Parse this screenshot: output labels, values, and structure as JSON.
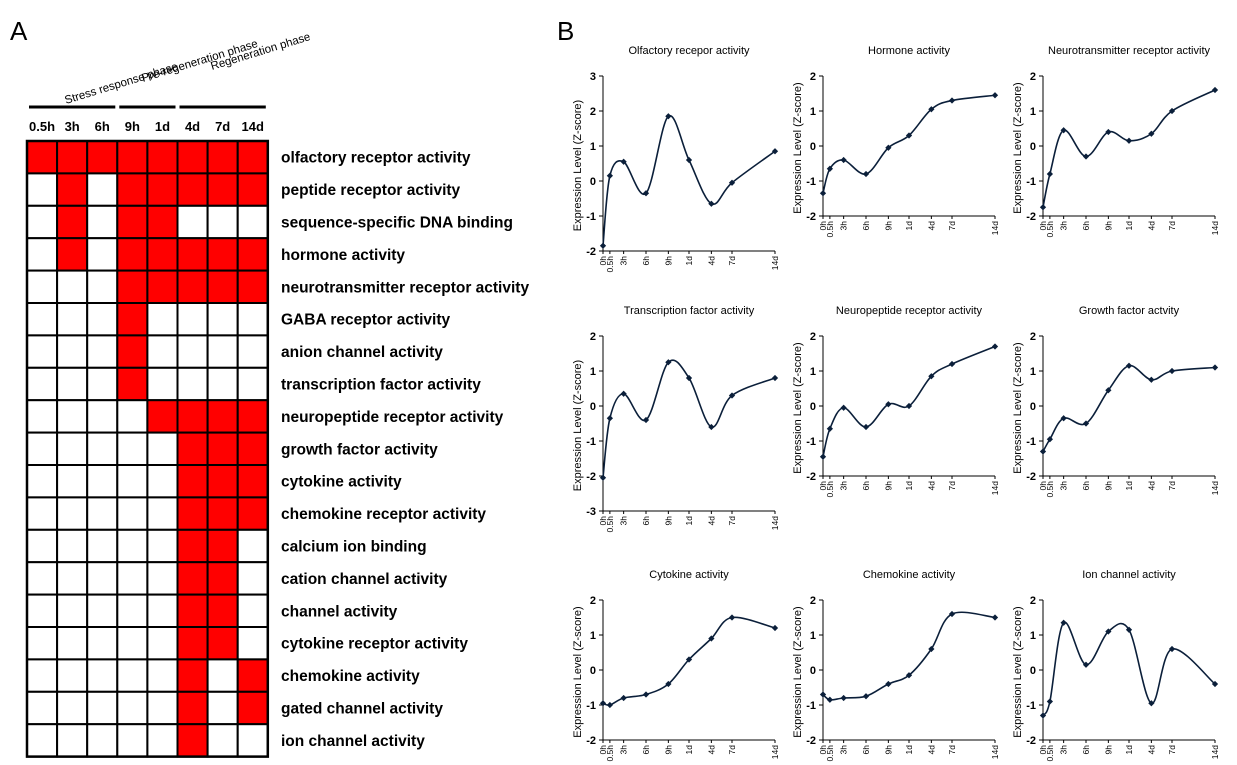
{
  "panel_a_letter": "A",
  "panel_b_letter": "B",
  "chart_data": [
    {
      "type": "heatmap",
      "phases": [
        "Stress response phase",
        "Pre-regeneration phase",
        "Regeneration phase"
      ],
      "columns": [
        "0.5h",
        "3h",
        "6h",
        "9h",
        "1d",
        "4d",
        "7d",
        "14d"
      ],
      "rows": [
        "olfactory receptor activity",
        "peptide receptor activity",
        "sequence-specific DNA binding",
        "hormone activity",
        "neurotransmitter receptor activity",
        "GABA receptor activity",
        "anion channel activity",
        "transcription factor activity",
        "neuropeptide receptor activity",
        "growth factor activity",
        "cytokine activity",
        "chemokine receptor activity",
        "calcium ion binding",
        "cation channel activity",
        "channel activity",
        "cytokine receptor activity",
        "chemokine activity",
        "gated channel activity",
        "ion channel activity"
      ],
      "matrix": [
        [
          1,
          1,
          1,
          1,
          1,
          1,
          1,
          1
        ],
        [
          0,
          1,
          0,
          1,
          1,
          1,
          1,
          1
        ],
        [
          0,
          1,
          0,
          1,
          1,
          0,
          0,
          0
        ],
        [
          0,
          1,
          0,
          1,
          1,
          1,
          1,
          1
        ],
        [
          0,
          0,
          0,
          1,
          1,
          1,
          1,
          1
        ],
        [
          0,
          0,
          0,
          1,
          0,
          0,
          0,
          0
        ],
        [
          0,
          0,
          0,
          1,
          0,
          0,
          0,
          0
        ],
        [
          0,
          0,
          0,
          1,
          0,
          0,
          0,
          0
        ],
        [
          0,
          0,
          0,
          0,
          1,
          1,
          1,
          1
        ],
        [
          0,
          0,
          0,
          0,
          0,
          1,
          1,
          1
        ],
        [
          0,
          0,
          0,
          0,
          0,
          1,
          1,
          1
        ],
        [
          0,
          0,
          0,
          0,
          0,
          1,
          1,
          1
        ],
        [
          0,
          0,
          0,
          0,
          0,
          1,
          1,
          0
        ],
        [
          0,
          0,
          0,
          0,
          0,
          1,
          1,
          0
        ],
        [
          0,
          0,
          0,
          0,
          0,
          1,
          1,
          0
        ],
        [
          0,
          0,
          0,
          0,
          0,
          1,
          1,
          0
        ],
        [
          0,
          0,
          0,
          0,
          0,
          1,
          0,
          1
        ],
        [
          0,
          0,
          0,
          0,
          0,
          1,
          0,
          1
        ],
        [
          0,
          0,
          0,
          0,
          0,
          1,
          0,
          0
        ]
      ],
      "colors": {
        "on": "#ff0000",
        "off": "#ffffff",
        "grid": "#000000"
      }
    },
    {
      "type": "line",
      "title": "Olfactory recepor activity",
      "ylabel": "Expression Level (Z-score)",
      "ylim": [
        -2,
        3
      ],
      "x": [
        "0h",
        "0.5h",
        "3h",
        "6h",
        "9h",
        "1d",
        "4d",
        "7d",
        "14d"
      ],
      "values": [
        -1.85,
        0.15,
        0.55,
        -0.35,
        1.85,
        0.6,
        -0.65,
        -0.05,
        0.85
      ]
    },
    {
      "type": "line",
      "title": "Hormone activity",
      "ylabel": "Expression Level (Z-score)",
      "ylim": [
        -2,
        2
      ],
      "x": [
        "0h",
        "0.5h",
        "3h",
        "6h",
        "9h",
        "1d",
        "4d",
        "7d",
        "14d"
      ],
      "values": [
        -1.35,
        -0.65,
        -0.4,
        -0.8,
        -0.05,
        0.3,
        1.05,
        1.3,
        1.45
      ]
    },
    {
      "type": "line",
      "title": "Neurotransmitter receptor activity",
      "ylabel": "Expression Level (Z-score)",
      "ylim": [
        -2,
        2
      ],
      "x": [
        "0h",
        "0.5h",
        "3h",
        "6h",
        "9h",
        "1d",
        "4d",
        "7d",
        "14d"
      ],
      "values": [
        -1.75,
        -0.8,
        0.45,
        -0.3,
        0.4,
        0.15,
        0.35,
        1.0,
        1.6
      ]
    },
    {
      "type": "line",
      "title": "Transcription factor activity",
      "ylabel": "Expression Level (Z-score)",
      "ylim": [
        -3,
        2
      ],
      "x": [
        "0h",
        "0.5h",
        "3h",
        "6h",
        "9h",
        "1d",
        "4d",
        "7d",
        "14d"
      ],
      "values": [
        -2.05,
        -0.35,
        0.35,
        -0.4,
        1.25,
        0.8,
        -0.6,
        0.3,
        0.8
      ]
    },
    {
      "type": "line",
      "title": "Neuropeptide receptor activity",
      "ylabel": "Expression Level (Z-score)",
      "ylim": [
        -2,
        2
      ],
      "x": [
        "0h",
        "0.5h",
        "3h",
        "6h",
        "9h",
        "1d",
        "4d",
        "7d",
        "14d"
      ],
      "values": [
        -1.45,
        -0.65,
        -0.05,
        -0.6,
        0.05,
        0.0,
        0.85,
        1.2,
        1.7
      ]
    },
    {
      "type": "line",
      "title": "Growth factor actvity",
      "ylabel": "Expression Level (Z-score)",
      "ylim": [
        -2,
        2
      ],
      "x": [
        "0h",
        "0.5h",
        "3h",
        "6h",
        "9h",
        "1d",
        "4d",
        "7d",
        "14d"
      ],
      "values": [
        -1.3,
        -0.95,
        -0.35,
        -0.5,
        0.45,
        1.15,
        0.75,
        1.0,
        1.1
      ]
    },
    {
      "type": "line",
      "title": "Cytokine activity",
      "ylabel": "Expression Level (Z-score)",
      "ylim": [
        -2,
        2
      ],
      "x": [
        "0h",
        "0.5h",
        "3h",
        "6h",
        "9h",
        "1d",
        "4d",
        "7d",
        "14d"
      ],
      "values": [
        -0.95,
        -1.0,
        -0.8,
        -0.7,
        -0.4,
        0.3,
        0.9,
        1.5,
        1.2
      ]
    },
    {
      "type": "line",
      "title": "Chemokine activity",
      "ylabel": "Expression Level (Z-score)",
      "ylim": [
        -2,
        2
      ],
      "x": [
        "0h",
        "0.5h",
        "3h",
        "6h",
        "9h",
        "1d",
        "4d",
        "7d",
        "14d"
      ],
      "values": [
        -0.7,
        -0.85,
        -0.8,
        -0.75,
        -0.4,
        -0.15,
        0.6,
        1.6,
        1.5
      ]
    },
    {
      "type": "line",
      "title": "Ion channel activity",
      "ylabel": "Expression Level (Z-score)",
      "ylim": [
        -2,
        2
      ],
      "x": [
        "0h",
        "0.5h",
        "3h",
        "6h",
        "9h",
        "1d",
        "4d",
        "7d",
        "14d"
      ],
      "values": [
        -1.3,
        -0.9,
        1.35,
        0.15,
        1.1,
        1.15,
        -0.95,
        0.6,
        -0.4
      ]
    }
  ]
}
